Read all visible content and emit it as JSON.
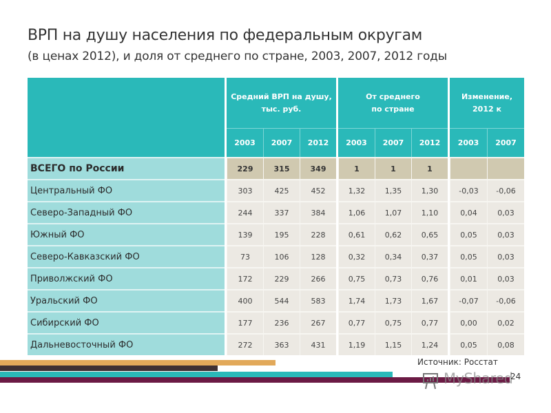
{
  "title": {
    "line1": "ВРП на душу населения по федеральным округам",
    "line2": "(в ценах 2012), и доля от среднего по стране, 2003, 2007, 2012 годы"
  },
  "table": {
    "groups": [
      {
        "label_line1": "Средний ВРП на душу,",
        "label_line2": "тыс. руб.",
        "years": [
          "2003",
          "2007",
          "2012"
        ]
      },
      {
        "label_line1": "От среднего",
        "label_line2": "по стране",
        "years": [
          "2003",
          "2007",
          "2012"
        ]
      },
      {
        "label_line1": "Изменение,",
        "label_line2": "2012 к",
        "years": [
          "2003",
          "2007"
        ]
      }
    ],
    "rows": [
      {
        "name": "ВСЕГО по России",
        "grp": [
          "229",
          "315",
          "349"
        ],
        "share": [
          "1",
          "1",
          "1"
        ],
        "change": [
          "",
          ""
        ]
      },
      {
        "name": "Центральный ФО",
        "grp": [
          "303",
          "425",
          "452"
        ],
        "share": [
          "1,32",
          "1,35",
          "1,30"
        ],
        "change": [
          "-0,03",
          "-0,06"
        ]
      },
      {
        "name": "Северо-Западный ФО",
        "grp": [
          "244",
          "337",
          "384"
        ],
        "share": [
          "1,06",
          "1,07",
          "1,10"
        ],
        "change": [
          "0,04",
          "0,03"
        ]
      },
      {
        "name": "Южный ФО",
        "grp": [
          "139",
          "195",
          "228"
        ],
        "share": [
          "0,61",
          "0,62",
          "0,65"
        ],
        "change": [
          "0,05",
          "0,03"
        ]
      },
      {
        "name": "Северо-Кавказский ФО",
        "grp": [
          "73",
          "106",
          "128"
        ],
        "share": [
          "0,32",
          "0,34",
          "0,37"
        ],
        "change": [
          "0,05",
          "0,03"
        ]
      },
      {
        "name": "Приволжский ФО",
        "grp": [
          "172",
          "229",
          "266"
        ],
        "share": [
          "0,75",
          "0,73",
          "0,76"
        ],
        "change": [
          "0,01",
          "0,03"
        ]
      },
      {
        "name": "Уральский ФО",
        "grp": [
          "400",
          "544",
          "583"
        ],
        "share": [
          "1,74",
          "1,73",
          "1,67"
        ],
        "change": [
          "-0,07",
          "-0,06"
        ]
      },
      {
        "name": "Сибирский ФО",
        "grp": [
          "177",
          "236",
          "267"
        ],
        "share": [
          "0,77",
          "0,75",
          "0,77"
        ],
        "change": [
          "0,00",
          "0,02"
        ]
      },
      {
        "name": "Дальневосточный ФО",
        "grp": [
          "272",
          "363",
          "431"
        ],
        "share": [
          "1,19",
          "1,15",
          "1,24"
        ],
        "change": [
          "0,05",
          "0,08"
        ]
      }
    ]
  },
  "footer": {
    "source": "Источник: Росстат",
    "watermark": "MyShared",
    "page_number": "24"
  },
  "colors": {
    "header_teal": "#2ab9b9",
    "label_teal": "#9fdcdc",
    "total_row": "#d0c9b0",
    "cell_bg": "#ece9e3",
    "stripe_orange": "#e2a95a",
    "stripe_dark": "#3e3033",
    "stripe_teal": "#2ab9b9",
    "stripe_maroon": "#6b1a44"
  }
}
